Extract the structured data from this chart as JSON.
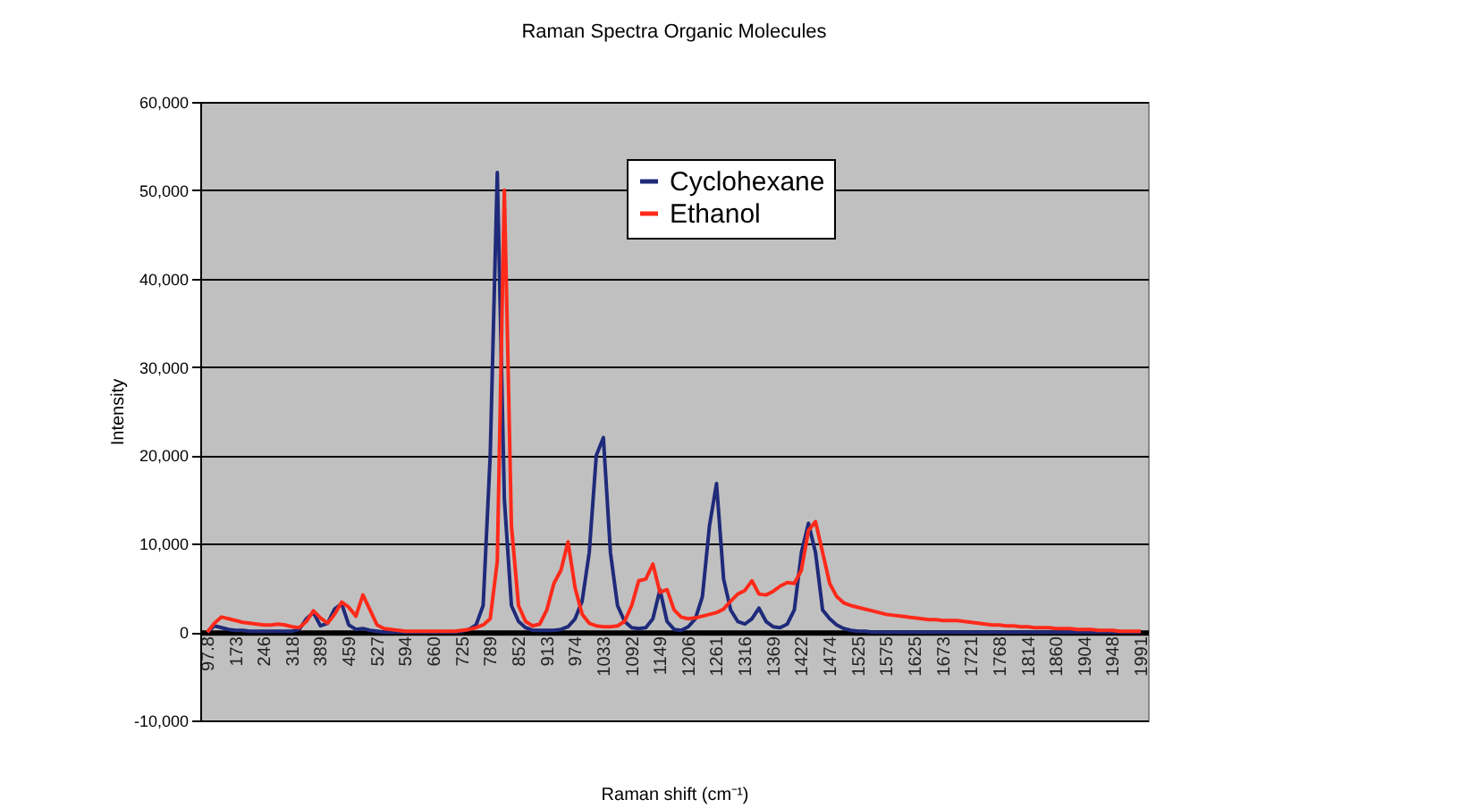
{
  "chart_data": {
    "type": "line",
    "title": "Raman Spectra Organic Molecules",
    "xlabel": "Raman shift (cm⁻¹)",
    "ylabel": "Intensity",
    "categories": [
      "97.8",
      null,
      null,
      null,
      "173",
      null,
      null,
      null,
      "246",
      null,
      null,
      null,
      "318",
      null,
      null,
      null,
      "389",
      null,
      null,
      null,
      "459",
      null,
      null,
      null,
      "527",
      null,
      null,
      null,
      "594",
      null,
      null,
      null,
      "660",
      null,
      null,
      null,
      "725",
      null,
      null,
      null,
      "789",
      null,
      null,
      null,
      "852",
      null,
      null,
      null,
      "913",
      null,
      null,
      null,
      "974",
      null,
      null,
      null,
      "1033",
      null,
      null,
      null,
      "1092",
      null,
      null,
      null,
      "1149",
      null,
      null,
      null,
      "1206",
      null,
      null,
      null,
      "1261",
      null,
      null,
      null,
      "1316",
      null,
      null,
      null,
      "1369",
      null,
      null,
      null,
      "1422",
      null,
      null,
      null,
      "1474",
      null,
      null,
      null,
      "1525",
      null,
      null,
      null,
      "1575",
      null,
      null,
      null,
      "1625",
      null,
      null,
      null,
      "1673",
      null,
      null,
      null,
      "1721",
      null,
      null,
      null,
      "1768",
      null,
      null,
      null,
      "1814",
      null,
      null,
      null,
      "1860",
      null,
      null,
      null,
      "1904",
      null,
      null,
      null,
      "1948",
      null,
      null,
      null,
      "1991"
    ],
    "series": [
      {
        "name": "Cyclohexane",
        "color": "#1f2a7a",
        "values": [
          0,
          700,
          500,
          300,
          200,
          200,
          100,
          100,
          100,
          100,
          100,
          100,
          100,
          300,
          1500,
          2200,
          700,
          1000,
          2600,
          3200,
          800,
          300,
          400,
          200,
          100,
          0,
          0,
          0,
          0,
          0,
          0,
          0,
          0,
          0,
          0,
          0,
          100,
          300,
          800,
          3000,
          20000,
          52000,
          15000,
          3000,
          1200,
          500,
          200,
          200,
          200,
          200,
          300,
          600,
          1500,
          3500,
          9000,
          20000,
          22000,
          9000,
          3000,
          1200,
          500,
          400,
          500,
          1500,
          4800,
          1200,
          300,
          200,
          600,
          1500,
          4000,
          12000,
          16800,
          6000,
          2500,
          1200,
          900,
          1500,
          2700,
          1200,
          600,
          500,
          900,
          2500,
          9000,
          12300,
          9000,
          2500,
          1500,
          800,
          400,
          200,
          100,
          100,
          0,
          0,
          0,
          0,
          0,
          0,
          0,
          0,
          0,
          0,
          0,
          0,
          0,
          0,
          0,
          0,
          0,
          0,
          0,
          0,
          0,
          0,
          0,
          0,
          0,
          0,
          0,
          0,
          0,
          0,
          0,
          0,
          0,
          0,
          0,
          0,
          0,
          0,
          0
        ]
      },
      {
        "name": "Ethanol",
        "color": "#ff2a1a",
        "values": [
          0,
          1000,
          1700,
          1500,
          1300,
          1100,
          1000,
          900,
          800,
          800,
          900,
          800,
          600,
          500,
          1200,
          2400,
          1600,
          1000,
          2000,
          3400,
          2800,
          1800,
          4200,
          2500,
          800,
          400,
          300,
          200,
          100,
          100,
          100,
          100,
          100,
          100,
          100,
          100,
          200,
          300,
          500,
          800,
          1500,
          8000,
          50000,
          12000,
          3000,
          1200,
          700,
          900,
          2500,
          5500,
          7000,
          10200,
          5000,
          2000,
          1000,
          700,
          600,
          600,
          700,
          1200,
          3000,
          5800,
          6000,
          7700,
          4500,
          4800,
          2500,
          1700,
          1500,
          1600,
          1800,
          2000,
          2200,
          2600,
          3500,
          4300,
          4700,
          5800,
          4300,
          4200,
          4600,
          5200,
          5600,
          5500,
          7000,
          11500,
          12500,
          9000,
          5500,
          4000,
          3300,
          3000,
          2800,
          2600,
          2400,
          2200,
          2000,
          1900,
          1800,
          1700,
          1600,
          1500,
          1400,
          1400,
          1300,
          1300,
          1300,
          1200,
          1100,
          1000,
          900,
          800,
          800,
          700,
          700,
          600,
          600,
          500,
          500,
          500,
          400,
          400,
          400,
          300,
          300,
          300,
          200,
          200,
          200,
          100,
          100,
          100,
          100
        ]
      }
    ],
    "ylim": [
      -10000,
      60000
    ],
    "yticks": [
      {
        "value": -10000,
        "label": "-10,000"
      },
      {
        "value": 0,
        "label": "0"
      },
      {
        "value": 10000,
        "label": "10,000"
      },
      {
        "value": 20000,
        "label": "20,000"
      },
      {
        "value": 30000,
        "label": "30,000"
      },
      {
        "value": 40000,
        "label": "40,000"
      },
      {
        "value": 50000,
        "label": "50,000"
      },
      {
        "value": 60000,
        "label": "60,000"
      }
    ],
    "grid": "y",
    "legend": "top",
    "marker": "none",
    "line_style": "solid"
  }
}
